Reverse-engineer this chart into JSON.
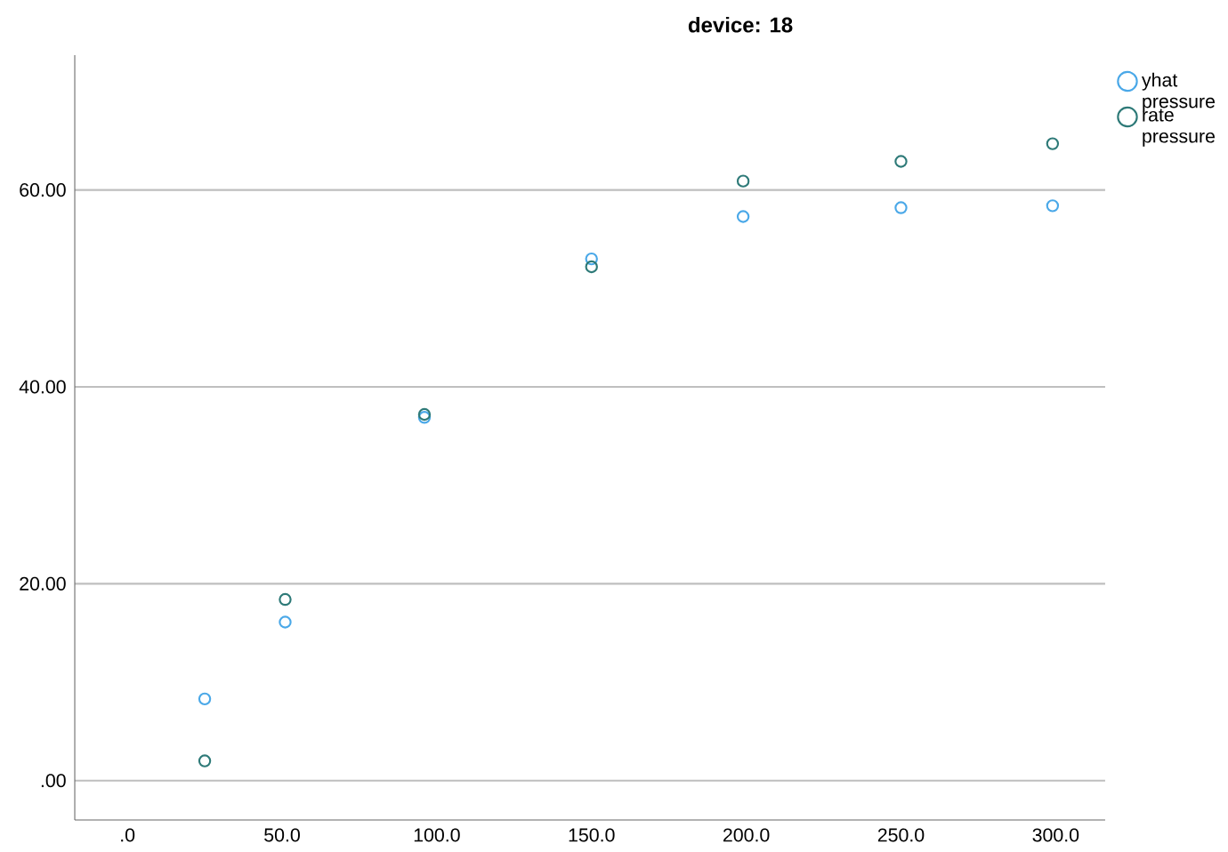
{
  "chart_data": {
    "type": "scatter",
    "title": "device: 18",
    "x": [
      25,
      51,
      96,
      150,
      199,
      250,
      299
    ],
    "series": [
      {
        "name": "yhat pressure",
        "color": "#4aa8e8",
        "values": [
          8.3,
          16.1,
          36.9,
          53.0,
          57.3,
          58.2,
          58.4
        ]
      },
      {
        "name": "rate pressure",
        "color": "#2e7a78",
        "values": [
          2.0,
          18.4,
          37.2,
          52.2,
          60.9,
          62.9,
          64.7
        ]
      }
    ],
    "xlim": [
      -17,
      316
    ],
    "ylim": [
      -4,
      73.7
    ],
    "xticks": [
      {
        "value": 0,
        "label": ".0"
      },
      {
        "value": 50,
        "label": "50.0"
      },
      {
        "value": 100,
        "label": "100.0"
      },
      {
        "value": 150,
        "label": "150.0"
      },
      {
        "value": 200,
        "label": "200.0"
      },
      {
        "value": 250,
        "label": "250.0"
      },
      {
        "value": 300,
        "label": "300.0"
      }
    ],
    "yticks": [
      {
        "value": 0,
        "label": ".00"
      },
      {
        "value": 20,
        "label": "20.00"
      },
      {
        "value": 40,
        "label": "40.00"
      },
      {
        "value": 60,
        "label": "60.00"
      }
    ],
    "grid": "y",
    "legend": "top right",
    "marker": "circle"
  }
}
